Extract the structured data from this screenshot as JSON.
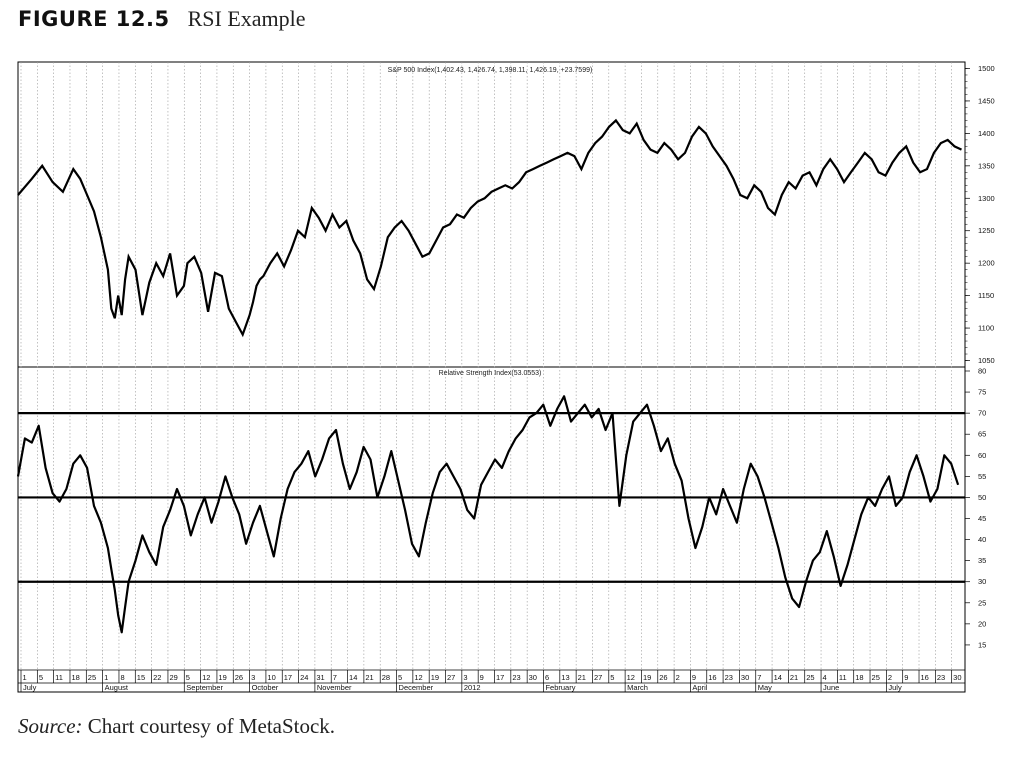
{
  "figure": {
    "label": "FIGURE 12.5",
    "title": "RSI Example",
    "source_label": "Source:",
    "source_text": "Chart courtesy of MetaStock."
  },
  "chart_data": [
    {
      "type": "line",
      "title": "S&P 500 Index(1,402.43, 1,426.74, 1,398.11, 1,426.19, +23.7599)",
      "ylim": [
        1040,
        1510
      ],
      "yticks": [
        1050,
        1100,
        1150,
        1200,
        1250,
        1300,
        1350,
        1400,
        1450,
        1500
      ],
      "xlim": [
        0,
        274
      ],
      "series": [
        {
          "x": [
            0,
            4,
            7,
            10,
            13,
            16,
            18,
            20,
            22,
            24,
            26,
            27,
            28,
            29,
            30,
            31,
            32,
            34,
            36,
            38,
            40,
            42,
            44,
            46,
            48,
            49,
            51,
            53,
            55,
            57,
            59,
            61,
            63,
            65,
            67,
            68,
            69,
            70,
            71,
            73,
            75,
            77,
            79,
            81,
            83,
            85,
            87,
            89,
            91,
            93,
            95,
            97,
            99,
            101,
            103,
            105,
            107,
            109,
            111,
            113,
            115,
            117,
            119,
            121,
            123,
            125,
            127,
            129,
            131,
            133,
            135,
            137,
            139,
            141,
            143,
            145,
            147,
            149,
            151,
            153,
            155,
            157,
            159,
            161,
            163,
            165,
            167,
            169,
            171,
            173,
            175,
            177,
            179,
            181,
            183,
            185,
            187,
            189,
            191,
            193,
            195,
            197,
            199,
            201,
            203,
            205,
            207,
            209,
            211,
            213,
            215,
            217,
            219,
            221,
            223,
            225,
            227,
            229,
            231,
            233,
            235,
            237,
            239,
            241,
            243,
            245,
            247,
            249,
            251,
            253,
            255,
            257,
            259,
            261,
            263,
            265,
            267,
            269,
            271,
            273
          ],
          "y": [
            1305,
            1330,
            1350,
            1325,
            1310,
            1345,
            1330,
            1305,
            1280,
            1240,
            1190,
            1130,
            1115,
            1150,
            1120,
            1175,
            1210,
            1190,
            1120,
            1170,
            1200,
            1180,
            1215,
            1150,
            1165,
            1200,
            1210,
            1185,
            1125,
            1185,
            1180,
            1130,
            1110,
            1090,
            1120,
            1140,
            1165,
            1175,
            1180,
            1200,
            1215,
            1195,
            1220,
            1250,
            1240,
            1285,
            1270,
            1250,
            1275,
            1255,
            1265,
            1235,
            1215,
            1175,
            1160,
            1195,
            1240,
            1255,
            1265,
            1250,
            1230,
            1210,
            1215,
            1235,
            1255,
            1260,
            1275,
            1270,
            1285,
            1295,
            1300,
            1310,
            1315,
            1320,
            1315,
            1325,
            1340,
            1345,
            1350,
            1355,
            1360,
            1365,
            1370,
            1365,
            1345,
            1370,
            1385,
            1395,
            1410,
            1420,
            1405,
            1400,
            1415,
            1390,
            1375,
            1370,
            1385,
            1375,
            1360,
            1370,
            1395,
            1410,
            1400,
            1380,
            1365,
            1350,
            1330,
            1305,
            1300,
            1320,
            1310,
            1285,
            1275,
            1305,
            1325,
            1315,
            1335,
            1340,
            1320,
            1345,
            1360,
            1345,
            1325,
            1340,
            1355,
            1370,
            1360,
            1340,
            1335,
            1355,
            1370,
            1380,
            1355,
            1340,
            1345,
            1370,
            1385,
            1390,
            1380,
            1375
          ]
        }
      ]
    },
    {
      "type": "line",
      "title": "Relative Strength Index(53.0553)",
      "ylim": [
        10,
        80
      ],
      "yticks": [
        15,
        20,
        25,
        30,
        35,
        40,
        45,
        50,
        55,
        60,
        65,
        70,
        75,
        80
      ],
      "reference_lines": [
        30,
        50,
        70
      ],
      "xlim": [
        0,
        274
      ],
      "series": [
        {
          "x": [
            0,
            2,
            4,
            6,
            8,
            10,
            12,
            14,
            16,
            18,
            20,
            22,
            24,
            26,
            27,
            28,
            29,
            30,
            31,
            32,
            34,
            36,
            38,
            40,
            42,
            44,
            46,
            48,
            50,
            52,
            54,
            56,
            58,
            60,
            62,
            64,
            66,
            68,
            70,
            72,
            74,
            76,
            78,
            80,
            82,
            84,
            86,
            88,
            90,
            92,
            94,
            96,
            98,
            100,
            102,
            104,
            106,
            108,
            110,
            112,
            114,
            116,
            118,
            120,
            122,
            124,
            126,
            128,
            130,
            132,
            134,
            136,
            138,
            140,
            142,
            144,
            146,
            148,
            150,
            152,
            154,
            156,
            158,
            160,
            162,
            164,
            166,
            168,
            170,
            172,
            174,
            176,
            178,
            180,
            182,
            184,
            186,
            188,
            190,
            192,
            194,
            196,
            198,
            200,
            202,
            204,
            206,
            208,
            210,
            212,
            214,
            216,
            218,
            220,
            222,
            224,
            226,
            228,
            230,
            232,
            234,
            236,
            238,
            240,
            242,
            244,
            246,
            248,
            250,
            252,
            254,
            256,
            258,
            260,
            262,
            264,
            266,
            268,
            270,
            272
          ],
          "y": [
            55,
            64,
            63,
            67,
            57,
            51,
            49,
            52,
            58,
            60,
            57,
            48,
            44,
            38,
            33,
            28,
            22,
            18,
            24,
            30,
            35,
            41,
            37,
            34,
            43,
            47,
            52,
            48,
            41,
            46,
            50,
            44,
            49,
            55,
            50,
            46,
            39,
            44,
            48,
            42,
            36,
            45,
            52,
            56,
            58,
            61,
            55,
            59,
            64,
            66,
            58,
            52,
            56,
            62,
            59,
            50,
            55,
            61,
            54,
            47,
            39,
            36,
            44,
            51,
            56,
            58,
            55,
            52,
            47,
            45,
            53,
            56,
            59,
            57,
            61,
            64,
            66,
            69,
            70,
            72,
            67,
            71,
            74,
            68,
            70,
            72,
            69,
            71,
            66,
            70,
            48,
            60,
            68,
            70,
            72,
            67,
            61,
            64,
            58,
            54,
            45,
            38,
            43,
            50,
            46,
            52,
            48,
            44,
            52,
            58,
            55,
            50,
            44,
            38,
            31,
            26,
            24,
            30,
            35,
            37,
            42,
            36,
            29,
            34,
            40,
            46,
            50,
            48,
            52,
            55,
            48,
            50,
            56,
            60,
            55,
            49,
            52,
            60,
            58,
            53
          ]
        }
      ]
    }
  ],
  "x_axis": {
    "day_ticks": [
      "1",
      "5",
      "11",
      "18",
      "25",
      "1",
      "8",
      "15",
      "22",
      "29",
      "5",
      "12",
      "19",
      "26",
      "3",
      "10",
      "17",
      "24",
      "31",
      "7",
      "14",
      "21",
      "28",
      "5",
      "12",
      "19",
      "27",
      "3",
      "9",
      "17",
      "23",
      "30",
      "6",
      "13",
      "21",
      "27",
      "5",
      "12",
      "19",
      "26",
      "2",
      "9",
      "16",
      "23",
      "30",
      "7",
      "14",
      "21",
      "25",
      "4",
      "11",
      "18",
      "25",
      "2",
      "9",
      "16",
      "23",
      "30"
    ],
    "month_labels": [
      "July",
      "August",
      "September",
      "October",
      "November",
      "December",
      "2012",
      "February",
      "March",
      "April",
      "May",
      "June",
      "July"
    ]
  }
}
